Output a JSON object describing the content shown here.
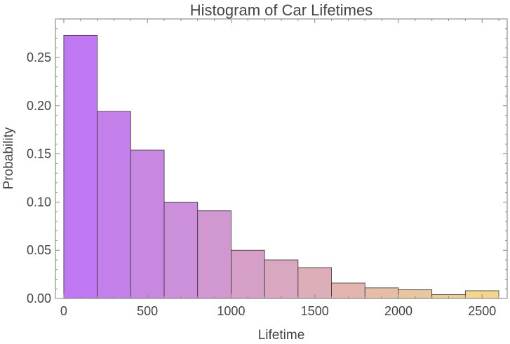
{
  "chart_data": {
    "type": "bar",
    "title": "Histogram of Car Lifetimes",
    "xlabel": "Lifetime",
    "ylabel": "Probability",
    "bin_width": 200,
    "bin_starts": [
      0,
      200,
      400,
      600,
      800,
      1000,
      1200,
      1400,
      1600,
      1800,
      2000,
      2200,
      2400
    ],
    "values": [
      0.273,
      0.194,
      0.154,
      0.1,
      0.091,
      0.05,
      0.04,
      0.032,
      0.016,
      0.011,
      0.009,
      0.004,
      0.008
    ],
    "xlim": [
      -50,
      2650
    ],
    "ylim": [
      0,
      0.29
    ],
    "xticks": [
      0,
      500,
      1000,
      1500,
      2000,
      2500
    ],
    "xtick_labels": [
      "0",
      "500",
      "1000",
      "1500",
      "2000",
      "2500"
    ],
    "yticks": [
      0.0,
      0.05,
      0.1,
      0.15,
      0.2,
      0.25
    ],
    "ytick_labels": [
      "0.00",
      "0.05",
      "0.10",
      "0.15",
      "0.20",
      "0.25"
    ],
    "grid": false,
    "legend": "none",
    "colors": {
      "bar_start": "#bf77f2",
      "bar_end": "#f3d68c",
      "text": "#444444",
      "frame": "#7a7a7a"
    }
  }
}
